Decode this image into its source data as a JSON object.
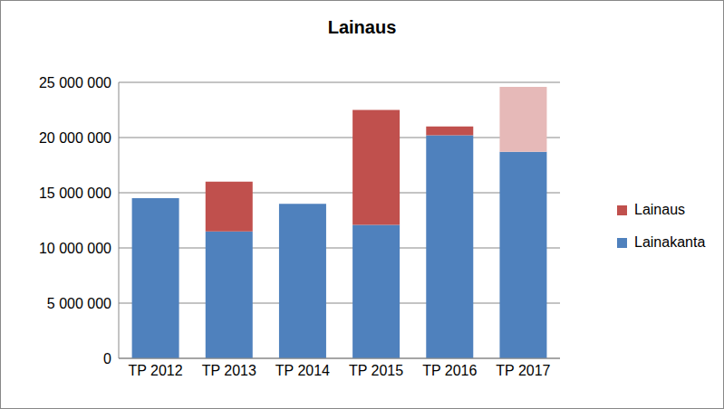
{
  "chart_data": {
    "type": "bar",
    "title": "Lainaus",
    "categories": [
      "TP 2012",
      "TP 2013",
      "TP 2014",
      "TP 2015",
      "TP 2016",
      "TP 2017"
    ],
    "series": [
      {
        "name": "Lainakanta",
        "color": "#4f81bd",
        "values": [
          14500000,
          11500000,
          14000000,
          12100000,
          20200000,
          18700000
        ]
      },
      {
        "name": "Lainaus",
        "color": "#c0504d",
        "colors": [
          "#c0504d",
          "#c0504d",
          "#c0504d",
          "#c0504d",
          "#c0504d",
          "#e6b9b8"
        ],
        "values": [
          0,
          4500000,
          0,
          10400000,
          800000,
          5900000
        ]
      }
    ],
    "stacked": true,
    "ylim": [
      0,
      25000000
    ],
    "yticks": [
      {
        "value": 0,
        "label": "0"
      },
      {
        "value": 5000000,
        "label": "5 000 000"
      },
      {
        "value": 10000000,
        "label": "10 000 000"
      },
      {
        "value": 15000000,
        "label": "15 000 000"
      },
      {
        "value": 20000000,
        "label": "20 000 000"
      },
      {
        "value": 25000000,
        "label": "25 000 000"
      }
    ],
    "grid": true,
    "legend": "right"
  }
}
